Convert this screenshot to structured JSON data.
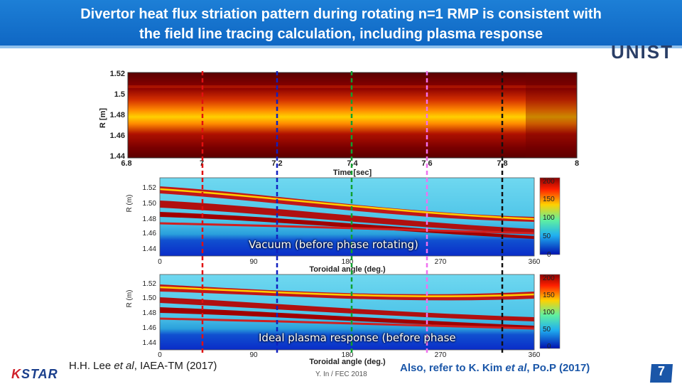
{
  "header": {
    "title_line1": "Divertor heat flux striation pattern during rotating n=1 RMP is consistent with",
    "title_line2": "the field line tracing calculation, including plasma response"
  },
  "logo_right": {
    "text": "UNIST"
  },
  "logo_left": {
    "text_k": "K",
    "text_rest": "STAR"
  },
  "colors": {
    "header_blue": "#1270cc",
    "title_white": "#ffffff",
    "ref_blue": "#1a56a8",
    "badge_blue": "#1a56a8"
  },
  "top_plot": {
    "ylabel": "R [m]",
    "yticks": [
      "1.52",
      "1.5",
      "1.48",
      "1.46",
      "1.44"
    ],
    "xticks": [
      "6.8",
      "7",
      "7.2",
      "7.4",
      "7.6",
      "7.8",
      "8"
    ],
    "xlabel": "Time [sec]"
  },
  "middle_plot": {
    "ylabel": "R (m)",
    "yticks": [
      "1.52",
      "1.50",
      "1.48",
      "1.46",
      "1.44"
    ],
    "xticks": [
      "0",
      "90",
      "180",
      "270",
      "360"
    ],
    "xlabel": "Toroidal angle (deg.)",
    "colorbar_ticks": [
      "200",
      "150",
      "100",
      "50",
      "0"
    ],
    "caption": "Vacuum (before phase rotating)"
  },
  "bottom_plot": {
    "ylabel": "R (m)",
    "yticks": [
      "1.52",
      "1.50",
      "1.48",
      "1.46",
      "1.44"
    ],
    "xticks": [
      "0",
      "90",
      "180",
      "270",
      "360"
    ],
    "xlabel": "Toroidal angle (deg.)",
    "colorbar_ticks": [
      "200",
      "150",
      "100",
      "50",
      "0"
    ],
    "caption": "Ideal plasma response (before phase"
  },
  "footer": {
    "ref_left_prefix": "H.H. Lee ",
    "ref_left_italic": "et al",
    "ref_left_suffix": ", IAEA-TM (2017)",
    "ref_center": "Y. In / FEC 2018",
    "ref_right_prefix": "Also, refer to K. Kim ",
    "ref_right_italic": "et al",
    "ref_right_suffix": ", Po.P (2017)",
    "page_number": "7"
  }
}
